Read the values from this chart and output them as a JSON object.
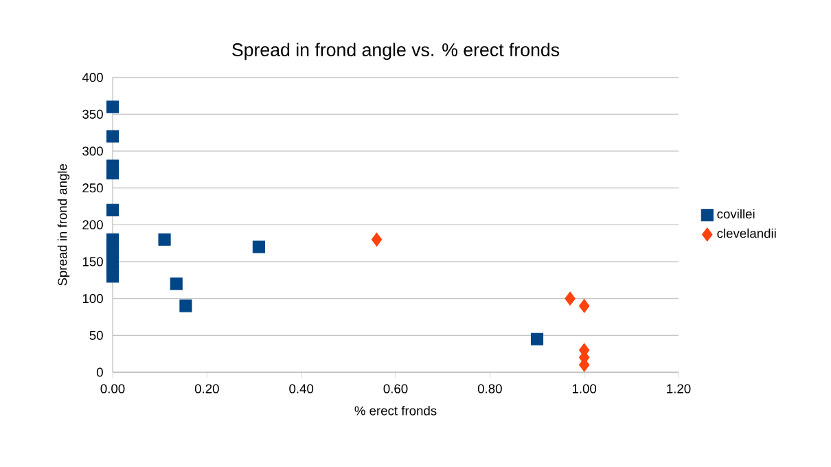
{
  "chart_data": {
    "type": "scatter",
    "title": "Spread in frond angle vs. % erect fronds",
    "xlabel": "% erect fronds",
    "ylabel": "Spread in frond angle",
    "xlim": [
      0,
      1.2
    ],
    "xticks": [
      {
        "value": 0,
        "label": "0.00"
      },
      {
        "value": 0.2,
        "label": "0.20"
      },
      {
        "value": 0.4,
        "label": "0.40"
      },
      {
        "value": 0.6,
        "label": "0.60"
      },
      {
        "value": 0.8,
        "label": "0.80"
      },
      {
        "value": 1,
        "label": "1.00"
      },
      {
        "value": 1.2,
        "label": "1.20"
      }
    ],
    "ylim": [
      0,
      400
    ],
    "yticks": [
      0,
      50,
      100,
      150,
      200,
      250,
      300,
      350,
      400
    ],
    "grid": "y",
    "legend": "right",
    "series": [
      {
        "name": "covillei",
        "color": "#004586",
        "marker": "square",
        "x": [
          0,
          0,
          0,
          0,
          0,
          0,
          0,
          0,
          0,
          0,
          0,
          0.11,
          0.135,
          0.155,
          0.31,
          0.9
        ],
        "values": [
          360,
          320,
          280,
          270,
          220,
          180,
          170,
          160,
          150,
          140,
          130,
          180,
          120,
          90,
          170,
          45
        ]
      },
      {
        "name": "clevelandii",
        "color": "#ff420e",
        "marker": "diamond",
        "x": [
          0.56,
          0.97,
          1,
          1,
          1,
          1
        ],
        "values": [
          180,
          100,
          90,
          30,
          20,
          10
        ]
      }
    ]
  }
}
